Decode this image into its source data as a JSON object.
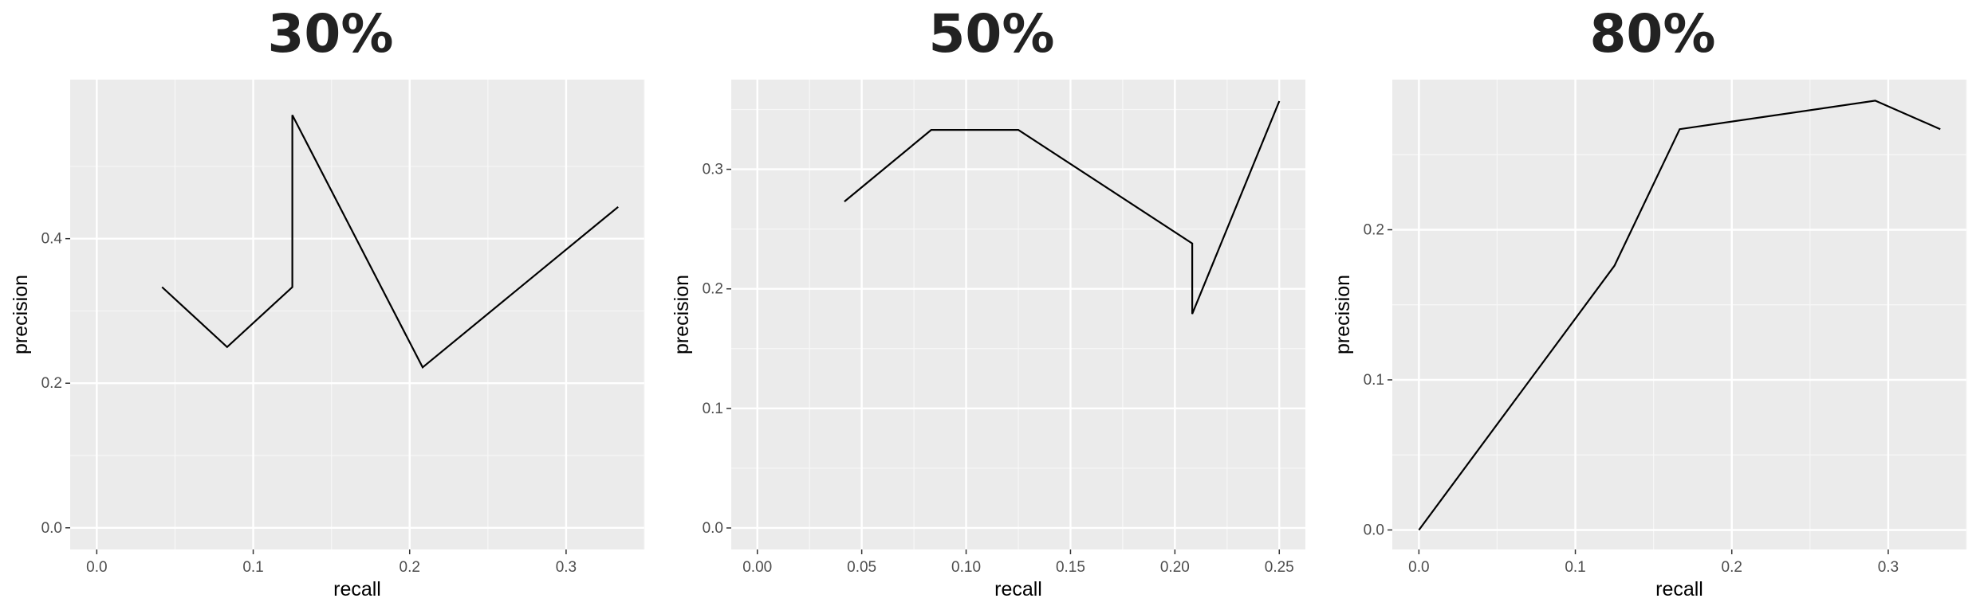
{
  "panels": [
    {
      "title": "30%",
      "chart_data": {
        "type": "line",
        "title": "30%",
        "xlabel": "recall",
        "ylabel": "precision",
        "xlim": [
          -0.017,
          0.35
        ],
        "ylim": [
          -0.03,
          0.62
        ],
        "x_ticks": [
          0.0,
          0.1,
          0.2,
          0.3
        ],
        "x_tick_labels": [
          "0.0",
          "0.1",
          "0.2",
          "0.3"
        ],
        "y_ticks": [
          0.0,
          0.2,
          0.4
        ],
        "y_tick_labels": [
          "0.0",
          "0.2",
          "0.4"
        ],
        "grid": true,
        "series": [
          {
            "x": [
              0.0417,
              0.0833,
              0.125,
              0.125,
              0.2083,
              0.3333
            ],
            "y": [
              0.333,
              0.25,
              0.333,
              0.571,
              0.222,
              0.444
            ]
          }
        ]
      }
    },
    {
      "title": "50%",
      "chart_data": {
        "type": "line",
        "title": "50%",
        "xlabel": "recall",
        "ylabel": "precision",
        "xlim": [
          -0.0125,
          0.2625
        ],
        "ylim": [
          -0.018,
          0.375
        ],
        "x_ticks": [
          0.0,
          0.05,
          0.1,
          0.15,
          0.2,
          0.25
        ],
        "x_tick_labels": [
          "0.00",
          "0.05",
          "0.10",
          "0.15",
          "0.20",
          "0.25"
        ],
        "y_ticks": [
          0.0,
          0.1,
          0.2,
          0.3
        ],
        "y_tick_labels": [
          "0.0",
          "0.1",
          "0.2",
          "0.3"
        ],
        "grid": true,
        "series": [
          {
            "x": [
              0.0417,
              0.0833,
              0.125,
              0.2083,
              0.2083,
              0.25
            ],
            "y": [
              0.273,
              0.333,
              0.333,
              0.238,
              0.179,
              0.357
            ]
          }
        ]
      }
    },
    {
      "title": "80%",
      "chart_data": {
        "type": "line",
        "title": "80%",
        "xlabel": "recall",
        "ylabel": "precision",
        "xlim": [
          -0.017,
          0.35
        ],
        "ylim": [
          -0.013,
          0.3
        ],
        "x_ticks": [
          0.0,
          0.1,
          0.2,
          0.3
        ],
        "x_tick_labels": [
          "0.0",
          "0.1",
          "0.2",
          "0.3"
        ],
        "y_ticks": [
          0.0,
          0.1,
          0.2
        ],
        "y_tick_labels": [
          "0.0",
          "0.1",
          "0.2"
        ],
        "grid": true,
        "series": [
          {
            "x": [
              0.0,
              0.125,
              0.1667,
              0.2917,
              0.3333
            ],
            "y": [
              0.0,
              0.176,
              0.267,
              0.286,
              0.267
            ]
          }
        ]
      }
    }
  ]
}
